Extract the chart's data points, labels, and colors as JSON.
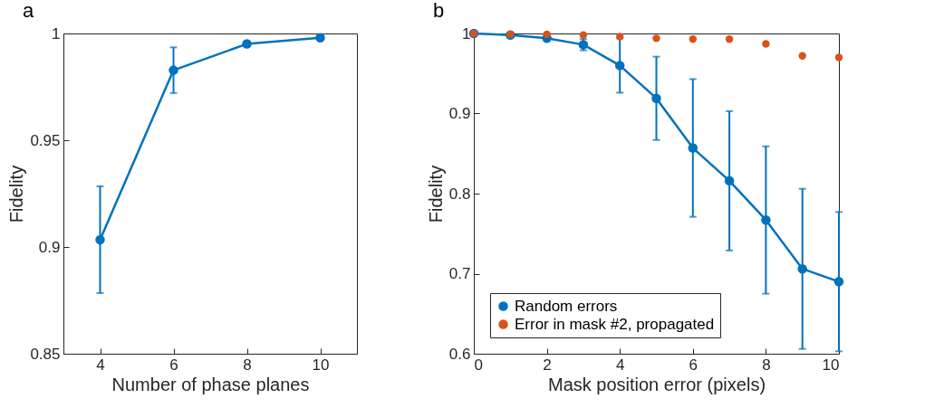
{
  "chart_data": [
    {
      "type": "line",
      "title": "a",
      "xlabel": "Number of phase planes",
      "ylabel": "Fidelity",
      "x": [
        4,
        6,
        8,
        10
      ],
      "xlim": [
        3,
        11
      ],
      "xticks": [
        4,
        6,
        8,
        10
      ],
      "ylim": [
        0.85,
        1
      ],
      "yticks": [
        0.85,
        0.9,
        0.95,
        1
      ],
      "grid": false,
      "marker": "circle",
      "line_style": "solid",
      "series": [
        {
          "color": "#0072bd",
          "values": [
            0.9034,
            0.9828,
            0.9951,
            0.998
          ],
          "errors": [
            0.025,
            0.0107,
            0.001,
            null
          ]
        }
      ]
    },
    {
      "type": "line",
      "title": "b",
      "xlabel": "Mask position error (pixels)",
      "ylabel": "Fidelity",
      "x": [
        0,
        1,
        2,
        3,
        4,
        5,
        6,
        7,
        8,
        9,
        10
      ],
      "xlim": [
        0,
        10
      ],
      "xticks": [
        0,
        2,
        4,
        6,
        8,
        10
      ],
      "ylim": [
        0.6,
        1
      ],
      "yticks": [
        0.6,
        0.7,
        0.8,
        0.9,
        1
      ],
      "grid": false,
      "marker": "circle",
      "line_style": "solid",
      "legend": "bottom left",
      "series": [
        {
          "name": "Random errors",
          "color": "#0072bd",
          "values": [
            1.0,
            0.998,
            0.994,
            0.986,
            0.96,
            0.919,
            0.857,
            0.816,
            0.767,
            0.706,
            0.69
          ],
          "errors": [
            null,
            null,
            null,
            0.007,
            0.034,
            0.052,
            0.086,
            0.087,
            0.092,
            0.1,
            0.087
          ]
        },
        {
          "name": "Error in mask #2, propagated",
          "type": "scatter",
          "color": "#d95319",
          "values": [
            1.0,
            0.999,
            0.999,
            0.998,
            0.996,
            0.994,
            0.993,
            0.993,
            0.987,
            0.972,
            0.97
          ]
        }
      ]
    }
  ]
}
